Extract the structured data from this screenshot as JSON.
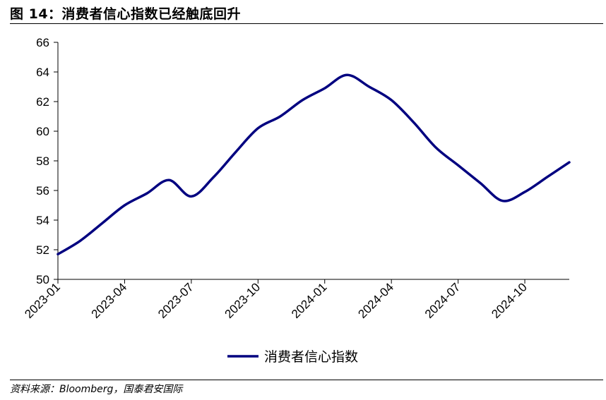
{
  "header": {
    "title": "图 14：消费者信心指数已经触底回升"
  },
  "footer": {
    "source": "资料来源：Bloomberg，国泰君安国际"
  },
  "chart_data": {
    "type": "line",
    "title": "图 14：消费者信心指数已经触底回升",
    "xlabel": "",
    "ylabel": "",
    "ylim": [
      50,
      66
    ],
    "y_ticks": [
      50,
      52,
      54,
      56,
      58,
      60,
      62,
      64,
      66
    ],
    "x_tick_labels": [
      "2023-01",
      "2023-04",
      "2023-07",
      "2023-10",
      "2024-01",
      "2024-04",
      "2024-07",
      "2024-10"
    ],
    "x": [
      "2023-01",
      "2023-02",
      "2023-03",
      "2023-04",
      "2023-05",
      "2023-06",
      "2023-07",
      "2023-08",
      "2023-09",
      "2023-10",
      "2023-11",
      "2023-12",
      "2024-01",
      "2024-02",
      "2024-03",
      "2024-04",
      "2024-05",
      "2024-06",
      "2024-07",
      "2024-08",
      "2024-09",
      "2024-10",
      "2024-11",
      "2024-12"
    ],
    "series": [
      {
        "name": "消费者信心指数",
        "color": "#000080",
        "values": [
          51.7,
          52.6,
          53.8,
          55.0,
          55.8,
          56.7,
          55.6,
          56.9,
          58.6,
          60.2,
          61.0,
          62.1,
          62.9,
          63.8,
          63.0,
          62.1,
          60.6,
          58.9,
          57.7,
          56.5,
          55.3,
          55.9,
          56.9,
          57.9
        ]
      }
    ],
    "grid": false,
    "legend": "bottom-center"
  }
}
